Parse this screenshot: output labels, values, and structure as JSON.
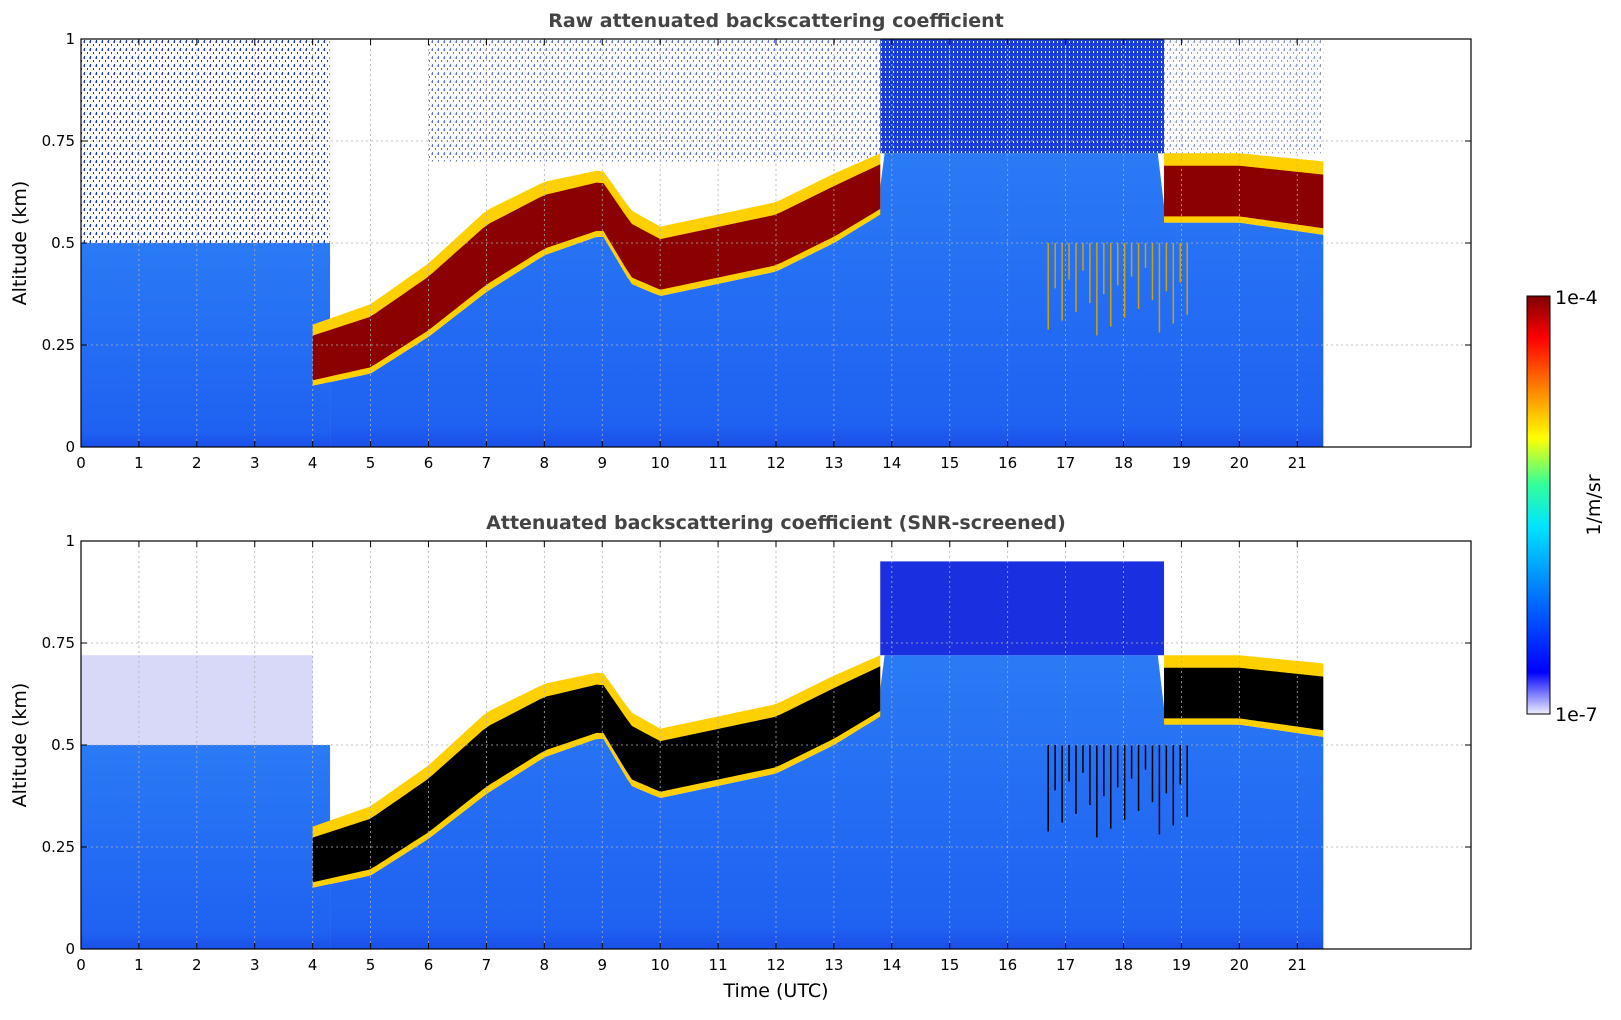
{
  "chart_data": [
    {
      "type": "heatmap",
      "title": "Raw attenuated backscattering coefficient",
      "xlabel": "",
      "ylabel": "Altitude (km)",
      "xlim": [
        0,
        24
      ],
      "ylim": [
        0,
        1
      ],
      "xticks": [
        "0",
        "1",
        "2",
        "3",
        "4",
        "5",
        "6",
        "7",
        "8",
        "9",
        "10",
        "11",
        "12",
        "13",
        "14",
        "15",
        "16",
        "17",
        "18",
        "19",
        "20",
        "21"
      ],
      "yticks": [
        "0",
        "0.25",
        "0.5",
        "0.75",
        "1"
      ],
      "grid": true,
      "data_end_time": 21.45,
      "layer": {
        "description_values": [
          {
            "t": 4.0,
            "bottom": 0.15,
            "top": 0.3
          },
          {
            "t": 5.0,
            "bottom": 0.18,
            "top": 0.35
          },
          {
            "t": 6.0,
            "bottom": 0.27,
            "top": 0.45
          },
          {
            "t": 7.0,
            "bottom": 0.38,
            "top": 0.58
          },
          {
            "t": 8.0,
            "bottom": 0.47,
            "top": 0.65
          },
          {
            "t": 9.0,
            "bottom": 0.52,
            "top": 0.68
          },
          {
            "t": 9.5,
            "bottom": 0.4,
            "top": 0.58
          },
          {
            "t": 10.0,
            "bottom": 0.37,
            "top": 0.54
          },
          {
            "t": 11.0,
            "bottom": 0.4,
            "top": 0.57
          },
          {
            "t": 12.0,
            "bottom": 0.43,
            "top": 0.6
          },
          {
            "t": 13.0,
            "bottom": 0.5,
            "top": 0.67
          },
          {
            "t": 13.8,
            "bottom": 0.57,
            "top": 0.72
          },
          {
            "t": 18.7,
            "bottom": 0.55,
            "top": 0.72
          },
          {
            "t": 20.0,
            "bottom": 0.55,
            "top": 0.72
          },
          {
            "t": 21.45,
            "bottom": 0.52,
            "top": 0.7
          }
        ]
      }
    },
    {
      "type": "heatmap",
      "title": "Attenuated backscattering coefficient (SNR-screened)",
      "xlabel": "Time (UTC)",
      "ylabel": "Altitude (km)",
      "xlim": [
        0,
        24
      ],
      "ylim": [
        0,
        1
      ],
      "xticks": [
        "0",
        "1",
        "2",
        "3",
        "4",
        "5",
        "6",
        "7",
        "8",
        "9",
        "10",
        "11",
        "12",
        "13",
        "14",
        "15",
        "16",
        "17",
        "18",
        "19",
        "20",
        "21"
      ],
      "yticks": [
        "0",
        "0.25",
        "0.5",
        "0.75",
        "1"
      ],
      "grid": true,
      "data_end_time": 21.45,
      "saturated_color": "#000000"
    }
  ],
  "colorbar": {
    "label": "1/m/sr",
    "max_label": "1e-4",
    "min_label": "1e-7",
    "scale": "log",
    "range": [
      1e-07,
      0.0001
    ],
    "colormap": [
      "#eeeeff",
      "#0000ff",
      "#0073ff",
      "#00e5ff",
      "#33ff99",
      "#ffff00",
      "#ff8000",
      "#ff0000",
      "#800000"
    ]
  }
}
